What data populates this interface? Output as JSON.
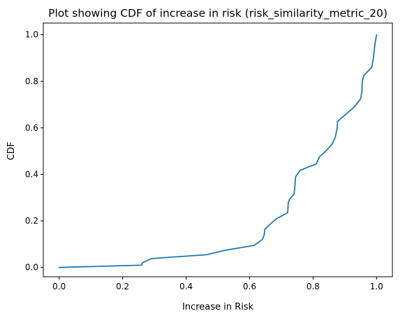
{
  "chart_data": {
    "type": "line",
    "title": "Plot showing CDF of increase in risk (risk_similarity_metric_20)",
    "xlabel": "Increase in Risk",
    "ylabel": "CDF",
    "xlim": [
      -0.05,
      1.05
    ],
    "ylim": [
      -0.04,
      1.05
    ],
    "grid": false,
    "xticks": [
      0.0,
      0.2,
      0.4,
      0.6,
      0.8,
      1.0
    ],
    "xtick_labels": [
      "0.0",
      "0.2",
      "0.4",
      "0.6",
      "0.8",
      "1.0"
    ],
    "yticks": [
      0.0,
      0.2,
      0.4,
      0.6,
      0.8,
      1.0
    ],
    "ytick_labels": [
      "0.0",
      "0.2",
      "0.4",
      "0.6",
      "0.8",
      "1.0"
    ],
    "color": "#1f77b4",
    "series": [
      {
        "x": [
          0.0,
          0.26,
          0.262,
          0.29,
          0.465,
          0.52,
          0.615,
          0.64,
          0.646,
          0.648,
          0.66,
          0.685,
          0.72,
          0.722,
          0.726,
          0.74,
          0.742,
          0.744,
          0.745,
          0.76,
          0.81,
          0.82,
          0.84,
          0.86,
          0.87,
          0.876,
          0.877,
          0.88,
          0.93,
          0.95,
          0.954,
          0.955,
          0.96,
          0.985,
          0.99,
          0.995,
          1.0
        ],
        "y": [
          0.0,
          0.01,
          0.02,
          0.038,
          0.055,
          0.073,
          0.095,
          0.12,
          0.14,
          0.163,
          0.18,
          0.21,
          0.235,
          0.28,
          0.293,
          0.315,
          0.34,
          0.37,
          0.39,
          0.418,
          0.445,
          0.475,
          0.5,
          0.53,
          0.56,
          0.6,
          0.627,
          0.63,
          0.69,
          0.725,
          0.758,
          0.8,
          0.825,
          0.86,
          0.9,
          0.96,
          1.0
        ]
      }
    ]
  }
}
